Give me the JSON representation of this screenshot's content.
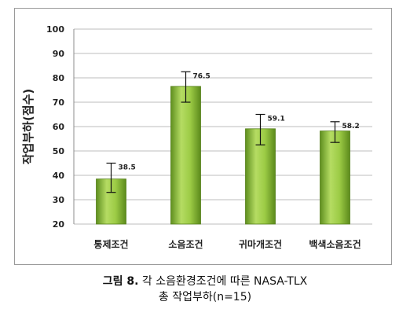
{
  "chart_data": {
    "type": "bar",
    "categories": [
      "통제조건",
      "소음조건",
      "귀마개조건",
      "백색소음조건"
    ],
    "values": [
      38.5,
      76.5,
      59.1,
      58.2
    ],
    "error_bars": [
      [
        33,
        45
      ],
      [
        70,
        82.5
      ],
      [
        52.5,
        65
      ],
      [
        53.5,
        62
      ]
    ],
    "data_labels": [
      "38.5",
      "76.5",
      "59.1",
      "58.2"
    ],
    "ylabel": "작업부하(점수)",
    "ylim": [
      20,
      100
    ],
    "yticks": [
      20,
      30,
      40,
      50,
      60,
      70,
      80,
      90,
      100
    ],
    "grid": true,
    "bar_color": "#8ab83a"
  },
  "caption": {
    "figure_label": "그림 8.",
    "line1": " 각 소음환경조건에 따른 NASA-TLX",
    "line2": "총 작업부하(n=15)"
  }
}
